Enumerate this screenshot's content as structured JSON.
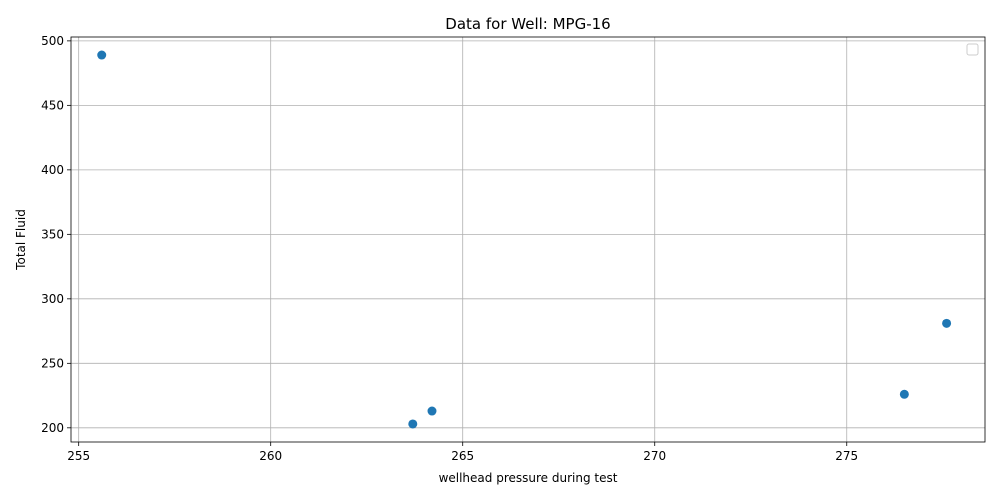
{
  "chart_data": {
    "type": "scatter",
    "title": "Data for Well: MPG-16",
    "xlabel": "wellhead pressure during test",
    "ylabel": "Total Fluid",
    "xlim": [
      254.8,
      278.6
    ],
    "ylim": [
      189,
      503
    ],
    "xticks": [
      255,
      260,
      265,
      270,
      275
    ],
    "yticks": [
      200,
      250,
      300,
      350,
      400,
      450,
      500
    ],
    "grid": true,
    "legend": "top-right",
    "series": [
      {
        "color": "#1f77b4",
        "points": [
          {
            "x": 255.6,
            "y": 489
          },
          {
            "x": 263.7,
            "y": 203
          },
          {
            "x": 264.2,
            "y": 213
          },
          {
            "x": 276.5,
            "y": 226
          },
          {
            "x": 277.6,
            "y": 281
          }
        ]
      }
    ]
  }
}
